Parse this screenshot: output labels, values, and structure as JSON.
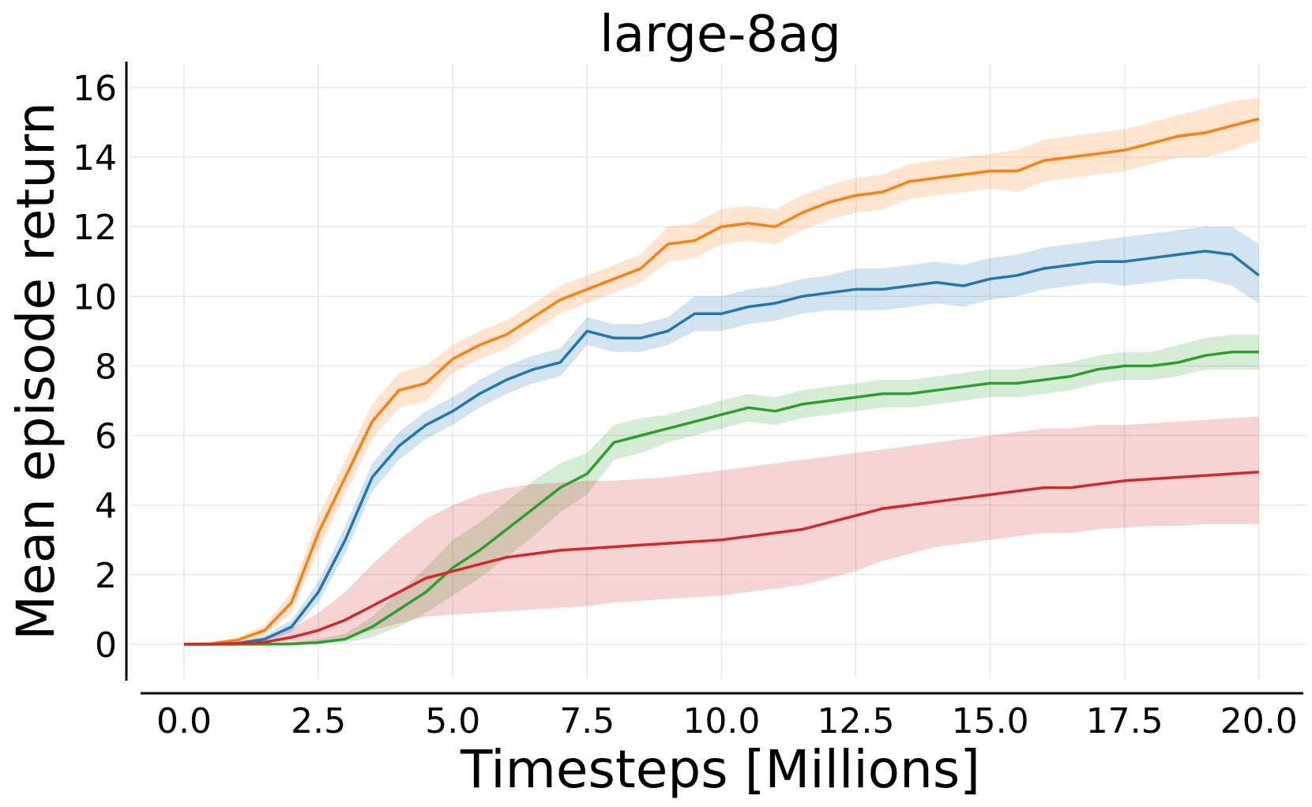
{
  "chart_data": {
    "type": "line",
    "title": "large-8ag",
    "xlabel": "Timesteps [Millions]",
    "ylabel": "Mean episode return",
    "xlim": [
      -1.0,
      20.9
    ],
    "ylim": [
      -1.0,
      16.7
    ],
    "xticks": [
      "0.0",
      "2.5",
      "5.0",
      "7.5",
      "10.0",
      "12.5",
      "15.0",
      "17.5",
      "20.0"
    ],
    "yticks": [
      "0",
      "2",
      "4",
      "6",
      "8",
      "10",
      "12",
      "14",
      "16"
    ],
    "grid": true,
    "legend": "none",
    "x": [
      0,
      0.5,
      1,
      1.5,
      2,
      2.5,
      3,
      3.5,
      4,
      4.5,
      5,
      5.5,
      6,
      6.5,
      7,
      7.5,
      8,
      8.5,
      9,
      9.5,
      10,
      10.5,
      11,
      11.5,
      12,
      12.5,
      13,
      13.5,
      14,
      14.5,
      15,
      15.5,
      16,
      16.5,
      17,
      17.5,
      18,
      18.5,
      19,
      19.5,
      20
    ],
    "series": [
      {
        "color": "#ff7f0e",
        "values": [
          0,
          0.02,
          0.12,
          0.4,
          1.2,
          3.2,
          4.8,
          6.4,
          7.3,
          7.5,
          8.2,
          8.6,
          8.9,
          9.4,
          9.9,
          10.2,
          10.5,
          10.8,
          11.5,
          11.6,
          12.0,
          12.1,
          12.0,
          12.4,
          12.7,
          12.9,
          13.0,
          13.3,
          13.4,
          13.5,
          13.6,
          13.6,
          13.9,
          14.0,
          14.1,
          14.2,
          14.4,
          14.6,
          14.7,
          14.9,
          15.1
        ],
        "lower": [
          0,
          0.0,
          0.05,
          0.25,
          0.9,
          2.7,
          4.3,
          5.9,
          6.8,
          7.0,
          7.8,
          8.2,
          8.5,
          9.0,
          9.5,
          9.8,
          10.1,
          10.4,
          11.0,
          11.1,
          11.5,
          11.6,
          11.5,
          11.9,
          12.2,
          12.4,
          12.5,
          12.8,
          12.9,
          13.0,
          13.1,
          13.0,
          13.3,
          13.4,
          13.5,
          13.6,
          13.8,
          14.0,
          14.0,
          14.2,
          14.5
        ],
        "upper": [
          0,
          0.05,
          0.2,
          0.55,
          1.5,
          3.7,
          5.3,
          6.9,
          7.8,
          8.0,
          8.6,
          9.0,
          9.3,
          9.8,
          10.3,
          10.6,
          10.9,
          11.2,
          12.0,
          12.1,
          12.5,
          12.6,
          12.5,
          12.9,
          13.2,
          13.4,
          13.5,
          13.8,
          13.9,
          14.0,
          14.1,
          14.2,
          14.5,
          14.6,
          14.7,
          14.8,
          15.0,
          15.2,
          15.4,
          15.6,
          15.7
        ]
      },
      {
        "color": "#1f77b4",
        "values": [
          0,
          0.0,
          0.03,
          0.15,
          0.5,
          1.5,
          3.0,
          4.8,
          5.7,
          6.3,
          6.7,
          7.2,
          7.6,
          7.9,
          8.1,
          9.0,
          8.8,
          8.8,
          9.0,
          9.5,
          9.5,
          9.7,
          9.8,
          10.0,
          10.1,
          10.2,
          10.2,
          10.3,
          10.4,
          10.3,
          10.5,
          10.6,
          10.8,
          10.9,
          11.0,
          11.0,
          11.1,
          11.2,
          11.3,
          11.2,
          10.6
        ],
        "lower": [
          0,
          0.0,
          0.0,
          0.08,
          0.35,
          1.2,
          2.6,
          4.4,
          5.3,
          5.9,
          6.3,
          6.8,
          7.2,
          7.5,
          7.7,
          8.6,
          8.4,
          8.4,
          8.6,
          9.0,
          9.0,
          9.2,
          9.3,
          9.5,
          9.6,
          9.6,
          9.6,
          9.7,
          9.8,
          9.7,
          9.9,
          10.0,
          10.2,
          10.3,
          10.4,
          10.3,
          10.4,
          10.5,
          10.5,
          10.3,
          9.8
        ],
        "upper": [
          0,
          0.02,
          0.07,
          0.25,
          0.7,
          1.8,
          3.4,
          5.2,
          6.1,
          6.7,
          7.1,
          7.6,
          8.0,
          8.3,
          8.5,
          9.4,
          9.2,
          9.2,
          9.4,
          10.0,
          10.0,
          10.2,
          10.3,
          10.5,
          10.6,
          10.8,
          10.8,
          10.9,
          11.0,
          10.9,
          11.1,
          11.2,
          11.4,
          11.5,
          11.6,
          11.7,
          11.8,
          11.9,
          12.0,
          12.0,
          11.5
        ]
      },
      {
        "color": "#2ca02c",
        "values": [
          0,
          0.0,
          0.0,
          0.0,
          0.01,
          0.05,
          0.15,
          0.5,
          1.0,
          1.5,
          2.2,
          2.7,
          3.3,
          3.9,
          4.5,
          4.9,
          5.8,
          6.0,
          6.2,
          6.4,
          6.6,
          6.8,
          6.7,
          6.9,
          7.0,
          7.1,
          7.2,
          7.2,
          7.3,
          7.4,
          7.5,
          7.5,
          7.6,
          7.7,
          7.9,
          8.0,
          8.0,
          8.1,
          8.3,
          8.4,
          8.4
        ],
        "lower": [
          0,
          0.0,
          0.0,
          0.0,
          0.0,
          0.0,
          0.05,
          0.2,
          0.5,
          0.9,
          1.4,
          1.9,
          2.5,
          3.1,
          3.8,
          4.3,
          5.3,
          5.5,
          5.8,
          6.0,
          6.2,
          6.4,
          6.3,
          6.5,
          6.6,
          6.7,
          6.8,
          6.8,
          6.9,
          7.0,
          7.1,
          7.1,
          7.2,
          7.3,
          7.5,
          7.6,
          7.6,
          7.7,
          7.9,
          7.9,
          7.9
        ],
        "upper": [
          0,
          0.0,
          0.0,
          0.01,
          0.05,
          0.15,
          0.3,
          0.8,
          1.5,
          2.2,
          3.0,
          3.5,
          4.1,
          4.7,
          5.2,
          5.5,
          6.3,
          6.5,
          6.6,
          6.8,
          7.0,
          7.2,
          7.1,
          7.3,
          7.4,
          7.5,
          7.6,
          7.6,
          7.7,
          7.8,
          7.9,
          7.9,
          8.0,
          8.1,
          8.3,
          8.4,
          8.4,
          8.6,
          8.8,
          8.9,
          8.9
        ]
      },
      {
        "color": "#d62728",
        "values": [
          0,
          0.0,
          0.02,
          0.06,
          0.2,
          0.4,
          0.7,
          1.1,
          1.5,
          1.9,
          2.1,
          2.3,
          2.5,
          2.6,
          2.7,
          2.75,
          2.8,
          2.85,
          2.9,
          2.95,
          3.0,
          3.1,
          3.2,
          3.3,
          3.5,
          3.7,
          3.9,
          4.0,
          4.1,
          4.2,
          4.3,
          4.4,
          4.5,
          4.5,
          4.6,
          4.7,
          4.75,
          4.8,
          4.85,
          4.9,
          4.95
        ],
        "lower": [
          0,
          0.0,
          0.0,
          0.0,
          0.02,
          0.08,
          0.2,
          0.4,
          0.6,
          0.8,
          0.85,
          0.9,
          0.95,
          1.0,
          1.05,
          1.1,
          1.2,
          1.25,
          1.3,
          1.35,
          1.4,
          1.5,
          1.6,
          1.7,
          1.9,
          2.1,
          2.4,
          2.6,
          2.8,
          2.9,
          3.0,
          3.1,
          3.2,
          3.2,
          3.3,
          3.35,
          3.4,
          3.4,
          3.45,
          3.45,
          3.45
        ],
        "upper": [
          0,
          0.02,
          0.05,
          0.15,
          0.45,
          0.9,
          1.5,
          2.3,
          3.0,
          3.6,
          4.0,
          4.3,
          4.5,
          4.6,
          4.65,
          4.7,
          4.7,
          4.75,
          4.8,
          4.9,
          5.0,
          5.1,
          5.2,
          5.3,
          5.4,
          5.5,
          5.6,
          5.7,
          5.8,
          5.9,
          6.0,
          6.1,
          6.2,
          6.2,
          6.3,
          6.3,
          6.35,
          6.4,
          6.45,
          6.5,
          6.55
        ]
      }
    ]
  }
}
